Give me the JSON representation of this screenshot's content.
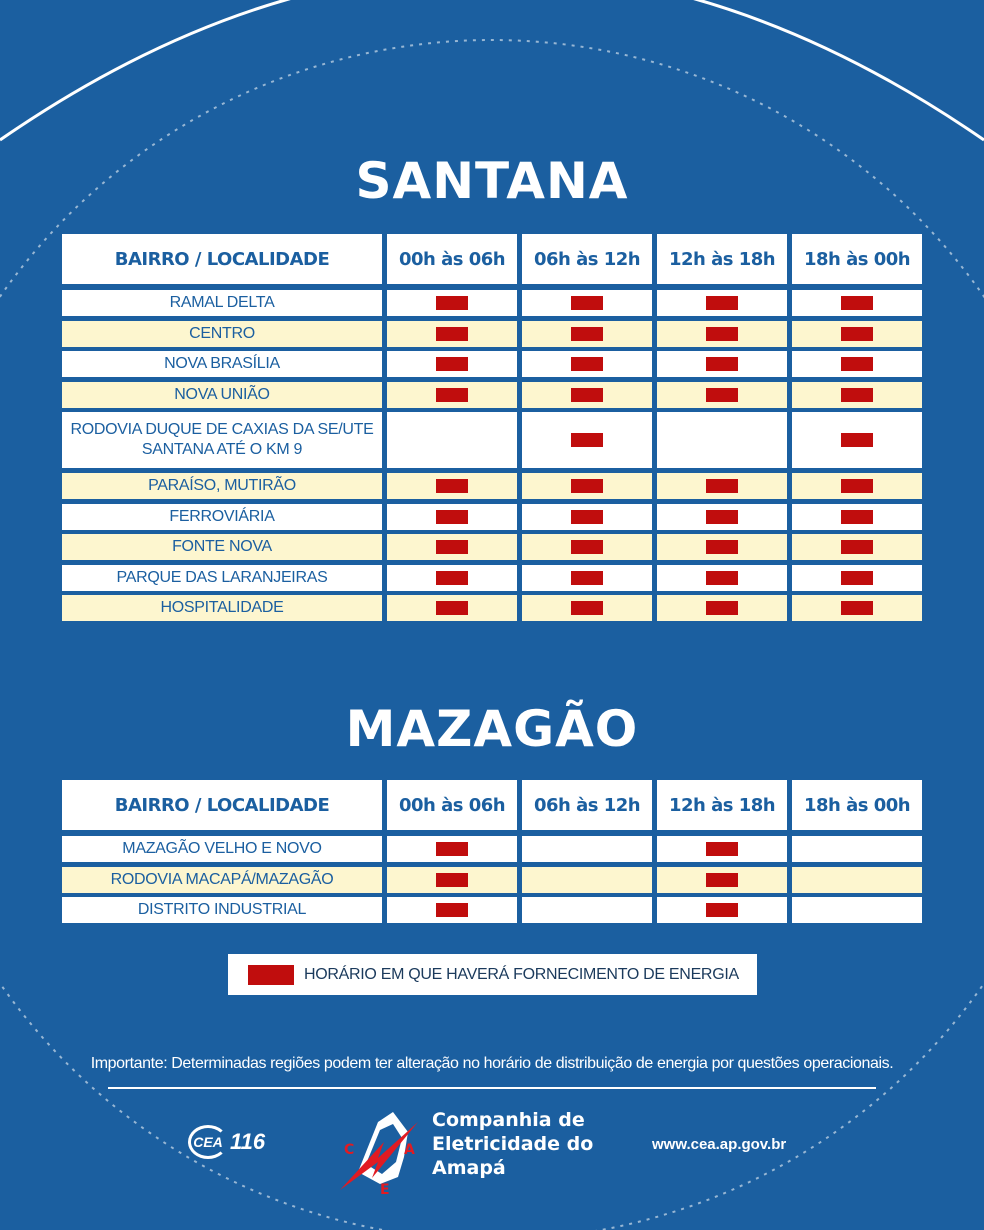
{
  "sections": [
    {
      "title": "SANTANA",
      "headers": [
        "BAIRRO / LOCALIDADE",
        "00h às 06h",
        "06h às 12h",
        "12h às 18h",
        "18h às 00h"
      ],
      "rows": [
        {
          "name": [
            "RAMAL DELTA"
          ],
          "supply": [
            true,
            true,
            true,
            true
          ]
        },
        {
          "name": [
            "CENTRO"
          ],
          "supply": [
            true,
            true,
            true,
            true
          ]
        },
        {
          "name": [
            "NOVA BRASÍLIA"
          ],
          "supply": [
            true,
            true,
            true,
            true
          ]
        },
        {
          "name": [
            "NOVA UNIÃO"
          ],
          "supply": [
            true,
            true,
            true,
            true
          ]
        },
        {
          "name": [
            "RODOVIA DUQUE DE CAXIAS DA SE/UTE",
            "SANTANA ATÉ O KM 9"
          ],
          "supply": [
            false,
            true,
            false,
            true
          ]
        },
        {
          "name": [
            "PARAÍSO, MUTIRÃO"
          ],
          "supply": [
            true,
            true,
            true,
            true
          ]
        },
        {
          "name": [
            "FERROVIÁRIA"
          ],
          "supply": [
            true,
            true,
            true,
            true
          ]
        },
        {
          "name": [
            "FONTE NOVA"
          ],
          "supply": [
            true,
            true,
            true,
            true
          ]
        },
        {
          "name": [
            "PARQUE DAS LARANJEIRAS"
          ],
          "supply": [
            true,
            true,
            true,
            true
          ]
        },
        {
          "name": [
            "HOSPITALIDADE"
          ],
          "supply": [
            true,
            true,
            true,
            true
          ]
        }
      ]
    },
    {
      "title": "MAZAGÃO",
      "headers": [
        "BAIRRO / LOCALIDADE",
        "00h às 06h",
        "06h às 12h",
        "12h às 18h",
        "18h às 00h"
      ],
      "rows": [
        {
          "name": [
            "MAZAGÃO VELHO E NOVO"
          ],
          "supply": [
            true,
            false,
            true,
            false
          ]
        },
        {
          "name": [
            "RODOVIA MACAPÁ/MAZAGÃO"
          ],
          "supply": [
            true,
            false,
            true,
            false
          ]
        },
        {
          "name": [
            "DISTRITO INDUSTRIAL"
          ],
          "supply": [
            true,
            false,
            true,
            false
          ]
        }
      ]
    }
  ],
  "legend": {
    "text": "HORÁRIO EM QUE HAVERÁ FORNECIMENTO DE ENERGIA",
    "color": "#c00d0d"
  },
  "notice": "Importante: Determinadas regiões podem ter alteração no horário de distribuição de energia por questões operacionais.",
  "footer": {
    "disc_small": "DISC",
    "disc_brand": "CEA",
    "disc_number": "116",
    "logo_letters": [
      "C",
      "E",
      "A"
    ],
    "company_lines": [
      "Companhia de",
      "Eletricidade do",
      "Amapá"
    ],
    "website": "www.cea.ap.gov.br"
  },
  "colors": {
    "background": "#1b5fa0",
    "row_alt": "#fdf6cf",
    "mark": "#c00d0d"
  }
}
